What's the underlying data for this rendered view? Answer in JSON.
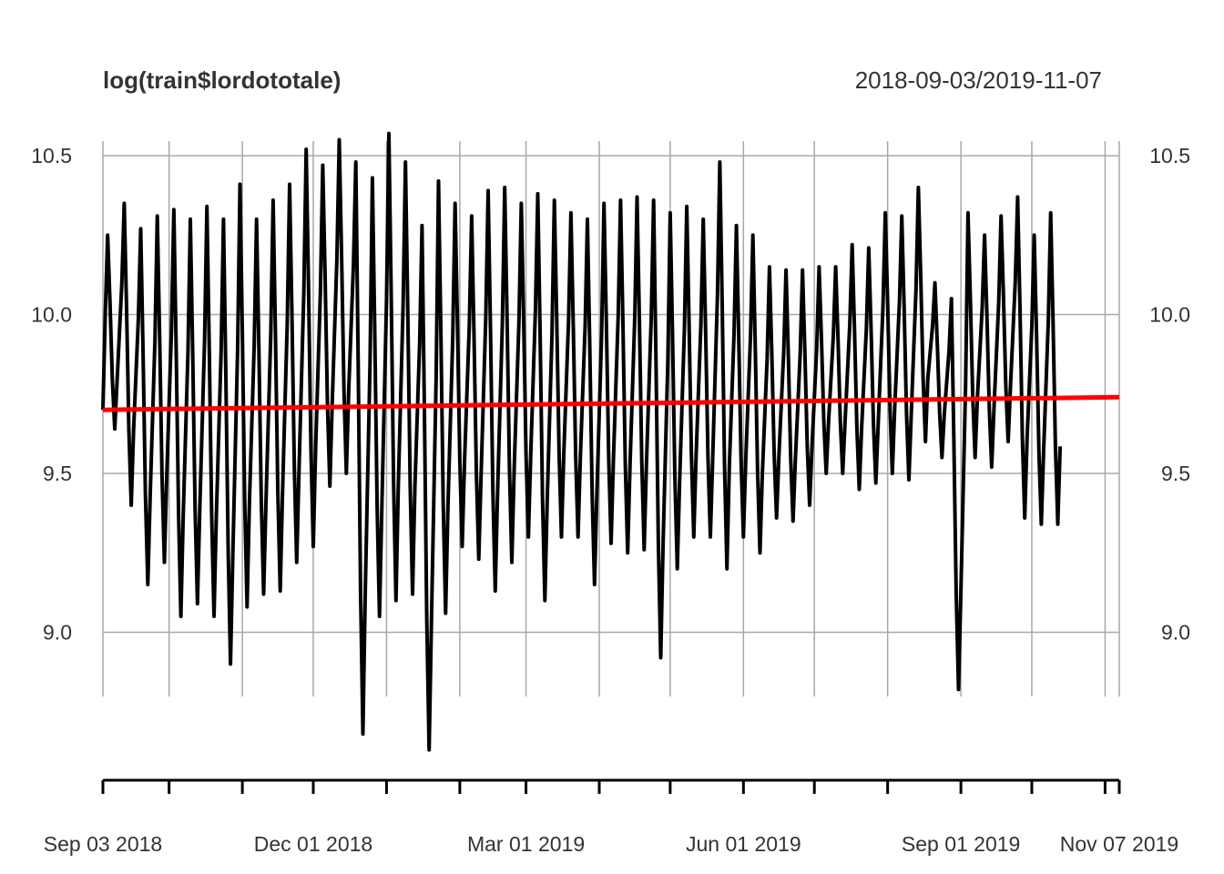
{
  "chart_data": {
    "type": "line",
    "title": "log(train$lordototale)",
    "date_range": "2018-09-03/2019-11-07",
    "xlim": [
      "2018-09-03",
      "2019-11-07"
    ],
    "ylim": [
      8.6,
      10.6
    ],
    "y_ticks": [
      "10.5",
      "10.0",
      "9.5",
      "9.0"
    ],
    "x_ticks": [
      {
        "date": "2018-09-03",
        "label": "Sep 03 2018"
      },
      {
        "date": "2018-12-01",
        "label": "Dec 01 2018"
      },
      {
        "date": "2019-03-01",
        "label": "Mar 01 2019"
      },
      {
        "date": "2019-06-01",
        "label": "Jun 01 2019"
      },
      {
        "date": "2019-09-01",
        "label": "Sep 01 2019"
      },
      {
        "date": "2019-11-07",
        "label": "Nov 07 2019"
      }
    ],
    "minor_ticks": [
      "2018-10-01",
      "2018-11-01",
      "2019-01-01",
      "2019-02-01",
      "2019-04-01",
      "2019-05-01",
      "2019-07-01",
      "2019-08-01",
      "2019-10-01",
      "2019-11-01"
    ],
    "grid": true,
    "series": [
      {
        "color": "#000000",
        "start_date": "2018-09-03",
        "end_date": "2019-10-24",
        "pattern": "daily series with strong weekly seasonality",
        "weekly_highs": [
          10.25,
          10.35,
          10.27,
          10.31,
          10.33,
          10.3,
          10.34,
          10.3,
          10.41,
          10.3,
          10.36,
          10.41,
          10.52,
          10.47,
          10.55,
          10.48,
          10.43,
          10.57,
          10.48,
          10.28,
          10.42,
          10.35,
          10.31,
          10.39,
          10.4,
          10.35,
          10.38,
          10.36,
          10.32,
          10.3,
          10.35,
          10.36,
          10.37,
          10.36,
          10.32,
          10.34,
          10.3,
          10.48,
          10.28,
          10.25,
          10.15,
          10.14,
          10.14,
          10.15,
          10.15,
          10.22,
          10.21,
          10.32,
          10.31,
          10.4,
          10.1,
          10.05,
          10.32,
          10.25,
          10.31,
          10.37,
          10.25,
          10.32
        ],
        "weekly_lows": [
          9.64,
          9.4,
          9.15,
          9.22,
          9.05,
          9.09,
          9.05,
          8.9,
          9.08,
          9.12,
          9.13,
          9.22,
          9.27,
          9.46,
          9.5,
          8.68,
          9.05,
          9.1,
          9.12,
          8.63,
          9.06,
          9.27,
          9.23,
          9.13,
          9.22,
          9.3,
          9.1,
          9.3,
          9.3,
          9.15,
          9.28,
          9.25,
          9.26,
          8.92,
          9.2,
          9.3,
          9.3,
          9.2,
          9.3,
          9.25,
          9.36,
          9.35,
          9.4,
          9.5,
          9.5,
          9.45,
          9.47,
          9.5,
          9.48,
          9.6,
          9.55,
          8.82,
          9.55,
          9.52,
          9.6,
          9.36,
          9.34,
          9.34
        ]
      },
      {
        "color": "#ff0000",
        "start_date": "2018-09-03",
        "end_date": "2019-11-07",
        "values": [
          9.7,
          9.74
        ]
      }
    ]
  }
}
